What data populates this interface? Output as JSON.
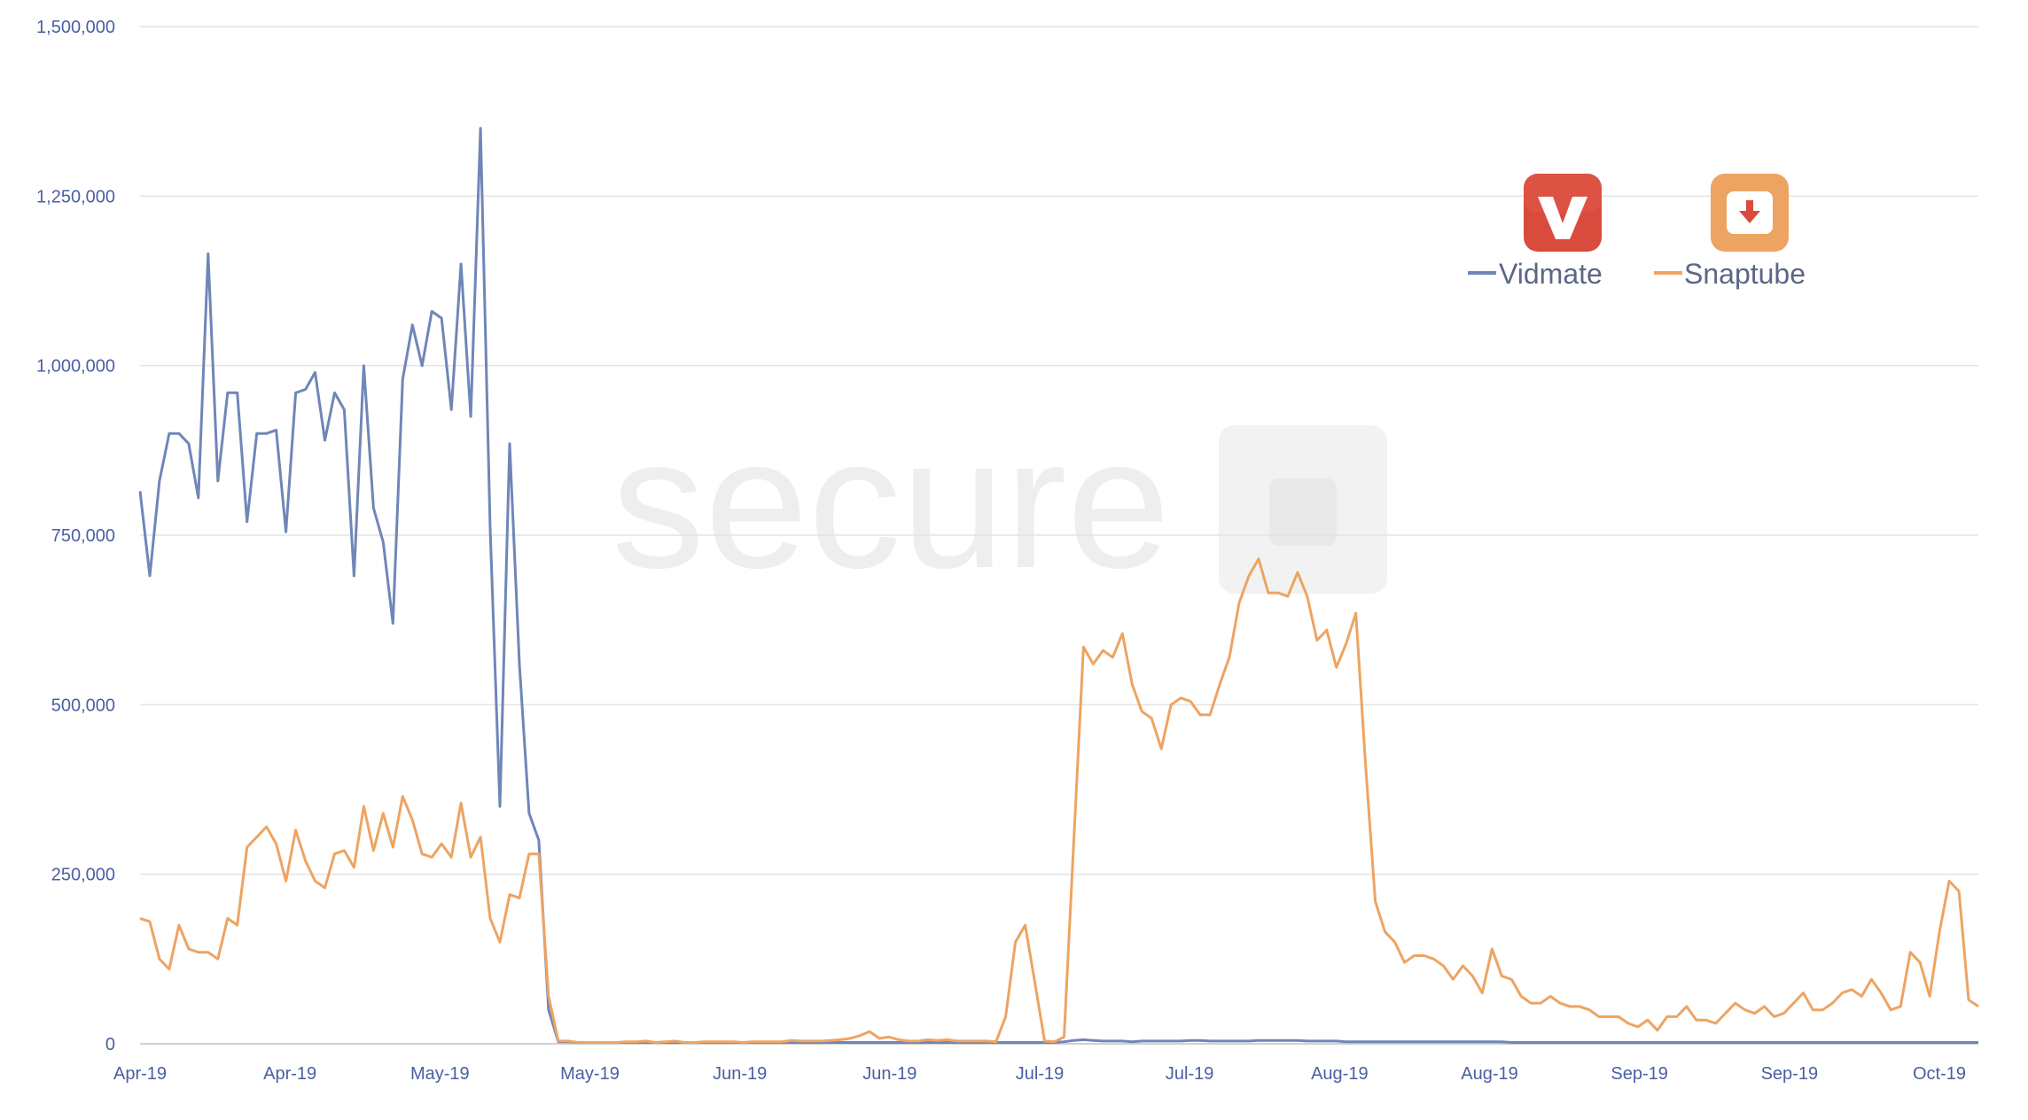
{
  "chart_data": {
    "type": "line",
    "title": "",
    "xlabel": "",
    "ylabel": "",
    "ylim": [
      0,
      1500000
    ],
    "yticks": [
      0,
      250000,
      500000,
      750000,
      1000000,
      1250000,
      1500000
    ],
    "ytick_labels": [
      "0",
      "250,000",
      "500,000",
      "750,000",
      "1,000,000",
      "1,250,000",
      "1,500,000"
    ],
    "xtick_labels": [
      "Apr-19",
      "Apr-19",
      "May-19",
      "May-19",
      "Jun-19",
      "Jun-19",
      "Jul-19",
      "Jul-19",
      "Aug-19",
      "Aug-19",
      "Sep-19",
      "Sep-19",
      "Oct-19"
    ],
    "grid": true,
    "legend_position": "top-right",
    "watermark": "secure",
    "colors": {
      "vidmate": "#6f86b8",
      "snaptube": "#eda462",
      "vidmate_icon": "#d84b3d",
      "snaptube_icon": "#eda462"
    },
    "icons": [
      "vidmate-v-icon",
      "snaptube-download-icon"
    ],
    "series": [
      {
        "name": "Vidmate",
        "values": [
          815000,
          690000,
          830000,
          900000,
          900000,
          885000,
          805000,
          1165000,
          830000,
          960000,
          960000,
          770000,
          900000,
          900000,
          905000,
          755000,
          960000,
          965000,
          990000,
          890000,
          960000,
          935000,
          690000,
          1000000,
          790000,
          740000,
          620000,
          980000,
          1060000,
          1000000,
          1080000,
          1070000,
          935000,
          1150000,
          925000,
          1350000,
          760000,
          350000,
          885000,
          560000,
          340000,
          300000,
          50000,
          3000,
          3000,
          2000,
          2000,
          2000,
          2000,
          2000,
          2000,
          2000,
          2000,
          2000,
          2000,
          2000,
          2000,
          2000,
          2000,
          2000,
          2000,
          2000,
          2000,
          2000,
          2000,
          2000,
          2000,
          2000,
          2000,
          2000,
          2000,
          2000,
          2000,
          2000,
          2000,
          2000,
          2000,
          2000,
          2000,
          2000,
          2000,
          2000,
          2000,
          2000,
          2000,
          2000,
          2000,
          2000,
          2000,
          2000,
          2000,
          2000,
          2000,
          2000,
          2000,
          3000,
          5000,
          6000,
          5000,
          4000,
          4000,
          4000,
          3000,
          4000,
          4000,
          4000,
          4000,
          4000,
          5000,
          5000,
          4000,
          4000,
          4000,
          4000,
          4000,
          5000,
          5000,
          5000,
          5000,
          5000,
          4000,
          4000,
          4000,
          4000,
          3000,
          3000,
          3000,
          3000,
          3000,
          3000,
          3000,
          3000,
          3000,
          3000,
          3000,
          3000,
          3000,
          3000,
          3000,
          3000,
          3000,
          2000,
          2000,
          2000,
          2000,
          2000,
          2000,
          2000,
          2000,
          2000,
          2000,
          2000,
          2000,
          2000,
          2000,
          2000,
          2000,
          2000,
          2000,
          2000,
          2000,
          2000,
          2000,
          2000,
          2000,
          2000,
          2000,
          2000,
          2000,
          2000,
          2000,
          2000,
          2000,
          2000,
          2000,
          2000,
          2000,
          2000,
          2000,
          2000,
          2000,
          2000,
          2000,
          2000,
          2000,
          2000,
          2000,
          2000,
          2000,
          2000
        ]
      },
      {
        "name": "Snaptube",
        "values": [
          185000,
          180000,
          125000,
          110000,
          175000,
          140000,
          135000,
          135000,
          125000,
          185000,
          175000,
          290000,
          305000,
          320000,
          295000,
          240000,
          315000,
          270000,
          240000,
          230000,
          280000,
          285000,
          260000,
          350000,
          285000,
          340000,
          290000,
          365000,
          330000,
          280000,
          275000,
          295000,
          275000,
          355000,
          275000,
          305000,
          185000,
          150000,
          220000,
          215000,
          280000,
          280000,
          70000,
          4000,
          4000,
          2000,
          2000,
          2000,
          2000,
          2000,
          3000,
          3000,
          4000,
          2000,
          3000,
          4000,
          2000,
          2000,
          3000,
          3000,
          3000,
          3000,
          2000,
          3000,
          3000,
          3000,
          3000,
          5000,
          4000,
          4000,
          4000,
          5000,
          6000,
          8000,
          12000,
          18000,
          8000,
          10000,
          6000,
          4000,
          4000,
          6000,
          5000,
          6000,
          4000,
          4000,
          4000,
          4000,
          3000,
          40000,
          150000,
          175000,
          90000,
          4000,
          3000,
          10000,
          300000,
          585000,
          560000,
          580000,
          570000,
          605000,
          530000,
          490000,
          480000,
          435000,
          500000,
          510000,
          505000,
          485000,
          485000,
          530000,
          570000,
          650000,
          690000,
          715000,
          665000,
          665000,
          660000,
          695000,
          660000,
          595000,
          610000,
          555000,
          590000,
          635000,
          410000,
          210000,
          165000,
          150000,
          120000,
          130000,
          130000,
          125000,
          115000,
          95000,
          115000,
          100000,
          75000,
          140000,
          100000,
          95000,
          70000,
          60000,
          60000,
          70000,
          60000,
          55000,
          55000,
          50000,
          40000,
          40000,
          40000,
          30000,
          25000,
          35000,
          20000,
          40000,
          40000,
          55000,
          35000,
          35000,
          30000,
          45000,
          60000,
          50000,
          45000,
          55000,
          40000,
          45000,
          60000,
          75000,
          50000,
          50000,
          60000,
          75000,
          80000,
          70000,
          95000,
          75000,
          50000,
          55000,
          135000,
          120000,
          70000,
          165000,
          240000,
          225000,
          65000,
          55000
        ]
      }
    ]
  }
}
